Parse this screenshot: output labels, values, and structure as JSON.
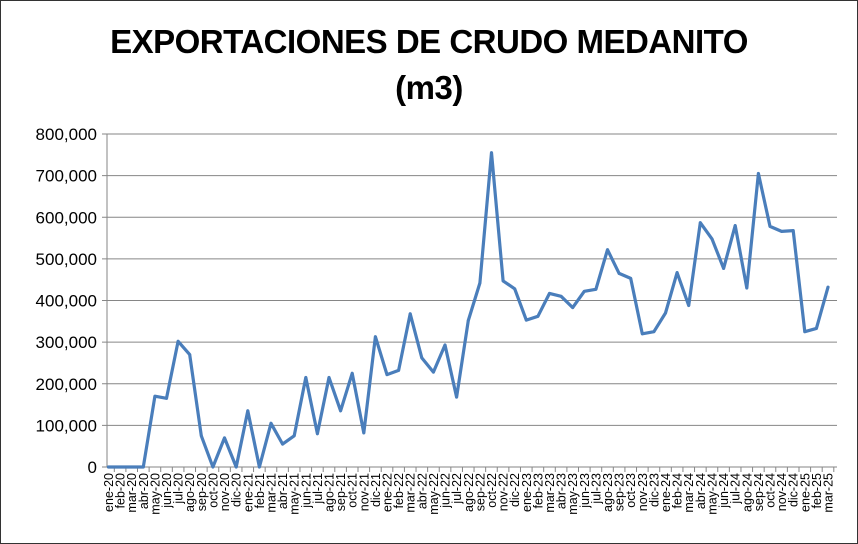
{
  "chart_data": {
    "type": "line",
    "title_line1": "EXPORTACIONES DE CRUDO MEDANITO",
    "title_line2": "(m3)",
    "xlabel": "",
    "ylabel": "",
    "ylim": [
      0,
      800000
    ],
    "yticks": [
      0,
      100000,
      200000,
      300000,
      400000,
      500000,
      600000,
      700000,
      800000
    ],
    "ytick_labels": [
      "0",
      "100,000",
      "200,000",
      "300,000",
      "400,000",
      "500,000",
      "600,000",
      "700,000",
      "800,000"
    ],
    "grid": true,
    "line_color": "#4a7ebb",
    "categories": [
      "ene-20",
      "feb-20",
      "mar-20",
      "abr-20",
      "may-20",
      "jun-20",
      "jul-20",
      "ago-20",
      "sep-20",
      "oct-20",
      "nov-20",
      "dic-20",
      "ene-21",
      "feb-21",
      "mar-21",
      "abr-21",
      "may-21",
      "jun-21",
      "jul-21",
      "ago-21",
      "sep-21",
      "oct-21",
      "nov-21",
      "dic-21",
      "ene-22",
      "feb-22",
      "mar-22",
      "abr-22",
      "may-22",
      "jun-22",
      "jul-22",
      "ago-22",
      "sep-22",
      "oct-22",
      "nov-22",
      "dic-22",
      "ene-23",
      "feb-23",
      "mar-23",
      "abr-23",
      "may-23",
      "jun-23",
      "jul-23",
      "ago-23",
      "sep-23",
      "oct-23",
      "nov-23",
      "dic-23",
      "ene-24",
      "feb-24",
      "mar-24",
      "abr-24",
      "may-24",
      "jun-24",
      "jul-24",
      "ago-24",
      "sep-24",
      "oct-24",
      "nov-24",
      "dic-24",
      "ene-25",
      "feb-25",
      "mar-25"
    ],
    "values": [
      0,
      0,
      0,
      0,
      170000,
      165000,
      302000,
      270000,
      75000,
      0,
      70000,
      0,
      135000,
      0,
      105000,
      55000,
      75000,
      215000,
      80000,
      215000,
      135000,
      225000,
      82000,
      313000,
      222000,
      232000,
      368000,
      262000,
      228000,
      293000,
      168000,
      352000,
      442000,
      755000,
      447000,
      428000,
      353000,
      362000,
      417000,
      410000,
      383000,
      422000,
      427000,
      522000,
      465000,
      453000,
      320000,
      325000,
      370000,
      467000,
      388000,
      587000,
      548000,
      477000,
      580000,
      430000,
      705000,
      578000,
      566000,
      568000,
      325000,
      333000,
      432000
    ]
  }
}
